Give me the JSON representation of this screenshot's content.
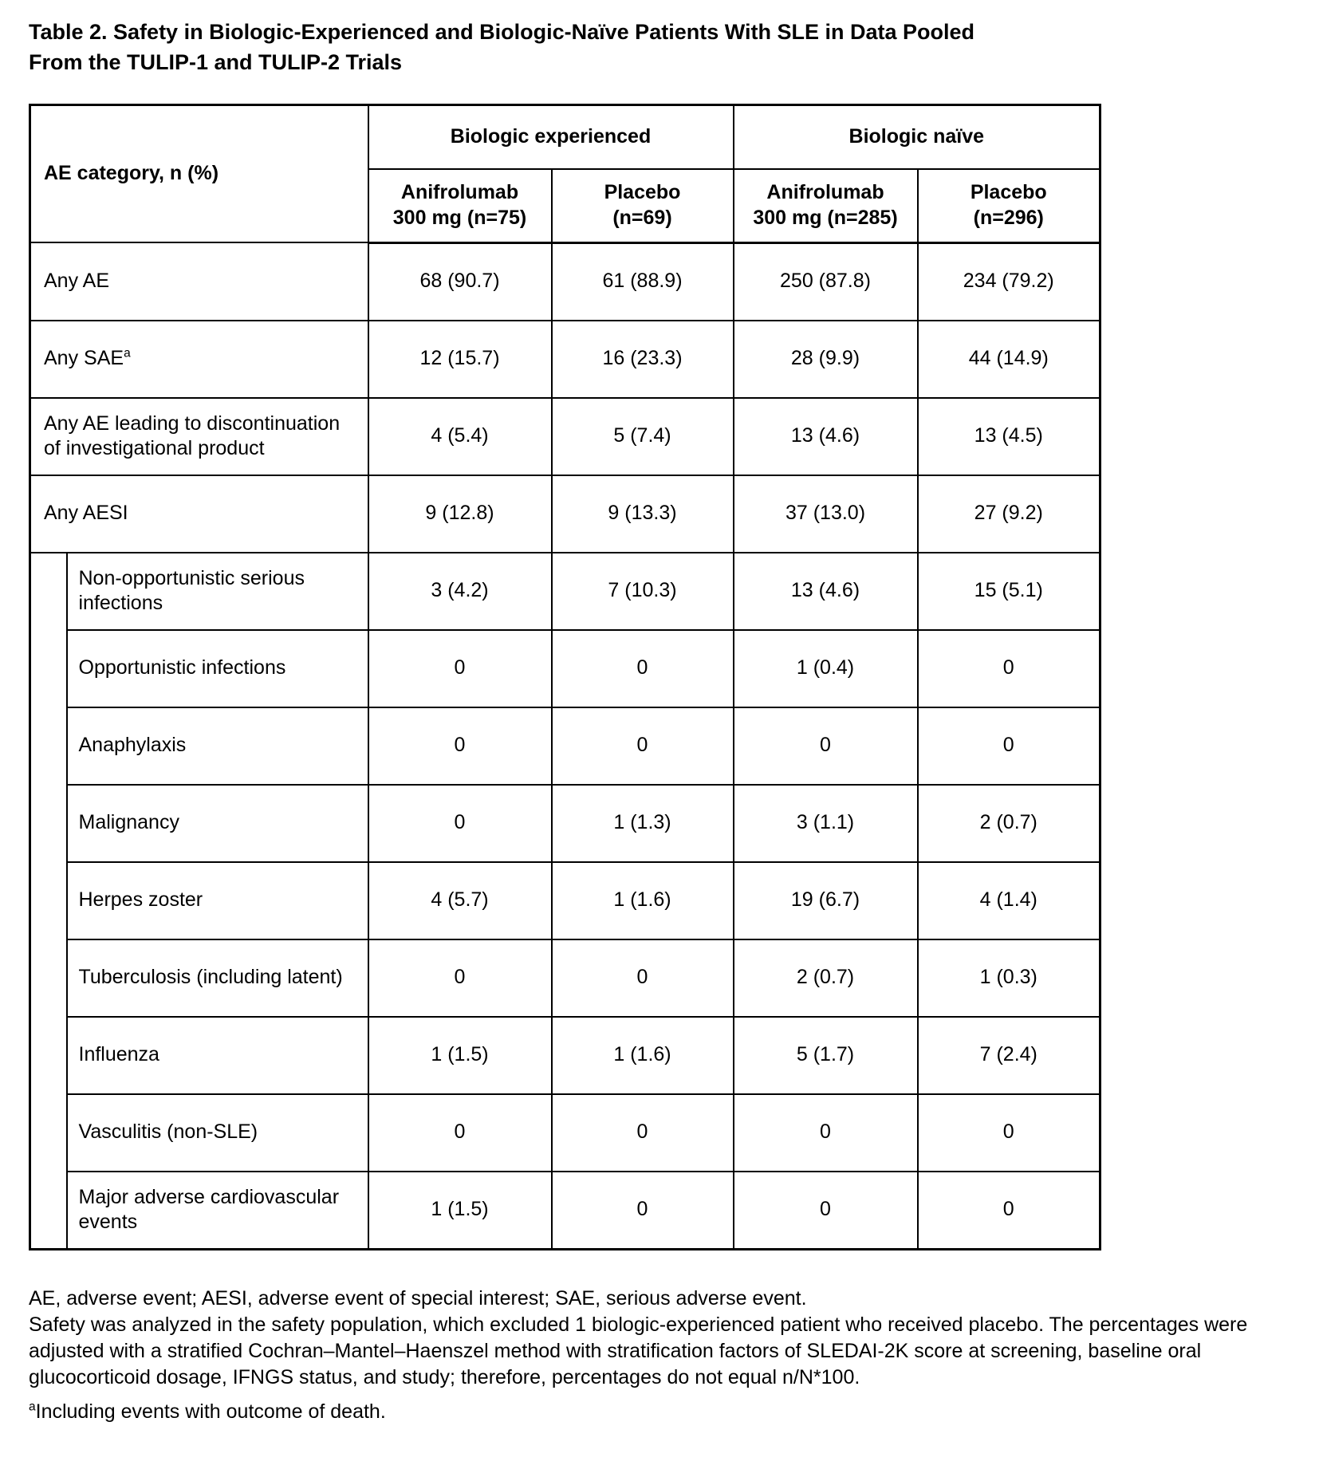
{
  "title_lines": [
    "Table 2. Safety in Biologic-Experienced and Biologic-Naïve Patients With SLE in Data Pooled",
    "From the TULIP-1 and TULIP-2 Trials"
  ],
  "table": {
    "corner_header": "AE category, n (%)",
    "group_headers": [
      "Biologic experienced",
      "Biologic naïve"
    ],
    "column_headers": [
      {
        "line1": "Anifrolumab",
        "line2": "300 mg (n=75)"
      },
      {
        "line1": "Placebo",
        "line2": "(n=69)"
      },
      {
        "line1": "Anifrolumab",
        "line2": "300 mg (n=285)"
      },
      {
        "line1": "Placebo",
        "line2": "(n=296)"
      }
    ],
    "rows": [
      {
        "label": "Any AE",
        "label_sup": "",
        "indent": false,
        "values": [
          "68 (90.7)",
          "61 (88.9)",
          "250 (87.8)",
          "234 (79.2)"
        ]
      },
      {
        "label": "Any SAE",
        "label_sup": "a",
        "indent": false,
        "values": [
          "12 (15.7)",
          "16 (23.3)",
          "28 (9.9)",
          "44 (14.9)"
        ]
      },
      {
        "label": "Any AE leading to discontinuation of investigational product",
        "label_sup": "",
        "indent": false,
        "values": [
          "4 (5.4)",
          "5 (7.4)",
          "13 (4.6)",
          "13 (4.5)"
        ]
      },
      {
        "label": "Any AESI",
        "label_sup": "",
        "indent": false,
        "values": [
          "9 (12.8)",
          "9 (13.3)",
          "37 (13.0)",
          "27 (9.2)"
        ]
      },
      {
        "label": "Non-opportunistic serious infections",
        "label_sup": "",
        "indent": true,
        "values": [
          "3 (4.2)",
          "7 (10.3)",
          "13 (4.6)",
          "15 (5.1)"
        ]
      },
      {
        "label": "Opportunistic infections",
        "label_sup": "",
        "indent": true,
        "values": [
          "0",
          "0",
          "1 (0.4)",
          "0"
        ]
      },
      {
        "label": "Anaphylaxis",
        "label_sup": "",
        "indent": true,
        "values": [
          "0",
          "0",
          "0",
          "0"
        ]
      },
      {
        "label": "Malignancy",
        "label_sup": "",
        "indent": true,
        "values": [
          "0",
          "1 (1.3)",
          "3 (1.1)",
          "2 (0.7)"
        ]
      },
      {
        "label": "Herpes zoster",
        "label_sup": "",
        "indent": true,
        "values": [
          "4 (5.7)",
          "1 (1.6)",
          "19 (6.7)",
          "4 (1.4)"
        ]
      },
      {
        "label": "Tuberculosis (including latent)",
        "label_sup": "",
        "indent": true,
        "values": [
          "0",
          "0",
          "2 (0.7)",
          "1 (0.3)"
        ]
      },
      {
        "label": "Influenza",
        "label_sup": "",
        "indent": true,
        "values": [
          "1 (1.5)",
          "1 (1.6)",
          "5 (1.7)",
          "7 (2.4)"
        ]
      },
      {
        "label": "Vasculitis (non-SLE)",
        "label_sup": "",
        "indent": true,
        "values": [
          "0",
          "0",
          "0",
          "0"
        ]
      },
      {
        "label": "Major adverse cardiovascular events",
        "label_sup": "",
        "indent": true,
        "values": [
          "1 (1.5)",
          "0",
          "0",
          "0"
        ]
      }
    ]
  },
  "footnotes": {
    "abbreviations": "AE, adverse event; AESI, adverse event of special interest; SAE, serious adverse event.",
    "methods": "Safety was analyzed in the safety population, which excluded 1 biologic-experienced patient who received placebo. The percentages were adjusted with a stratified Cochran–Mantel–Haenszel method with stratification factors of SLEDAI-2K score at screening, baseline oral glucocorticoid dosage, IFNGS status, and study; therefore, percentages do not equal n/N*100.",
    "sup_marker": "a",
    "sup_text": "Including events with outcome of death."
  }
}
